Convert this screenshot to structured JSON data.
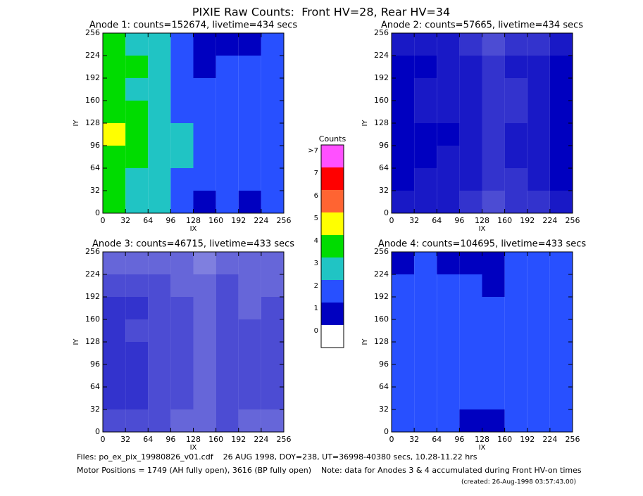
{
  "title": "PIXIE Raw Counts:  Front HV=28, Rear HV=34",
  "footer": {
    "files": "Files: po_ex_pix_19980826_v01.cdf    26 AUG 1998, DOY=238, UT=36998-40380 secs, 10.28-11.22 hrs",
    "motor": "Motor Positions = 1749 (AH fully open), 3616 (BP fully open)    Note: data for Anodes 3 & 4 accumulated during Front HV-on times",
    "created": "(created: 26-Aug-1998 03:57:43.00)"
  },
  "colorbar": {
    "title": "Counts",
    "labels": [
      "0",
      "1",
      "2",
      "3",
      "4",
      "5",
      "6",
      "7",
      ">7"
    ],
    "colors": [
      "#ffffff",
      "#0000c0",
      "#2850ff",
      "#20c4c4",
      "#00dc00",
      "#ffff00",
      "#ff6432",
      "#ff0000",
      "#ff50ff"
    ]
  },
  "chart_data": [
    {
      "type": "heatmap",
      "title": "Anode 1: counts=152674, livetime=434 secs",
      "xlabel": "IX",
      "ylabel": "IY",
      "xlim": [
        0,
        256
      ],
      "ylim": [
        0,
        256
      ],
      "xticks": [
        0,
        32,
        64,
        96,
        128,
        160,
        192,
        224,
        256
      ],
      "yticks": [
        0,
        32,
        64,
        96,
        128,
        160,
        192,
        224,
        256
      ],
      "values": [
        [
          3.8,
          3.2,
          2.8,
          2.2,
          1.4,
          1.5,
          1.4,
          1.6
        ],
        [
          4.2,
          3.4,
          3.0,
          2.4,
          1.5,
          1.5,
          1.5,
          1.7
        ],
        [
          4.4,
          3.6,
          3.1,
          2.5,
          1.6,
          1.6,
          1.6,
          1.8
        ],
        [
          4.6,
          3.6,
          3.2,
          2.5,
          1.5,
          1.6,
          1.6,
          1.8
        ],
        [
          4.4,
          3.5,
          3.1,
          2.4,
          1.5,
          1.5,
          1.5,
          1.7
        ],
        [
          4.2,
          3.4,
          3.0,
          2.4,
          1.5,
          1.5,
          1.5,
          1.7
        ],
        [
          4.3,
          3.5,
          3.1,
          2.4,
          1.4,
          1.5,
          1.5,
          1.6
        ],
        [
          4.0,
          3.2,
          2.8,
          2.2,
          1.3,
          1.4,
          1.4,
          1.5
        ]
      ]
    },
    {
      "type": "heatmap",
      "title": "Anode 2: counts=57665, livetime=434 secs",
      "xlabel": "IX",
      "ylabel": "IY",
      "xlim": [
        0,
        256
      ],
      "ylim": [
        0,
        256
      ],
      "xticks": [
        0,
        32,
        64,
        96,
        128,
        160,
        192,
        224,
        256
      ],
      "yticks": [
        0,
        32,
        64,
        96,
        128,
        160,
        192,
        224,
        256
      ],
      "values": [
        [
          0.9,
          0.9,
          0.9,
          0.8,
          0.7,
          0.8,
          0.8,
          0.9
        ],
        [
          1.0,
          0.9,
          0.9,
          0.9,
          0.8,
          0.8,
          0.9,
          1.0
        ],
        [
          1.0,
          1.0,
          0.9,
          0.9,
          0.8,
          0.9,
          0.9,
          1.0
        ],
        [
          1.0,
          1.0,
          1.0,
          0.9,
          0.8,
          0.9,
          0.9,
          1.0
        ],
        [
          1.0,
          0.9,
          0.9,
          0.9,
          0.8,
          0.8,
          0.9,
          1.0
        ],
        [
          1.0,
          0.9,
          0.9,
          0.9,
          0.8,
          0.8,
          0.9,
          1.0
        ],
        [
          1.0,
          1.0,
          0.9,
          0.9,
          0.8,
          0.9,
          0.9,
          1.0
        ],
        [
          0.9,
          0.9,
          0.9,
          0.8,
          0.7,
          0.8,
          0.8,
          0.9
        ]
      ]
    },
    {
      "type": "heatmap",
      "title": "Anode 3: counts=46715, livetime=433 secs",
      "xlabel": "IX",
      "ylabel": "IY",
      "xlim": [
        0,
        256
      ],
      "ylim": [
        0,
        256
      ],
      "xticks": [
        0,
        32,
        64,
        96,
        128,
        160,
        192,
        224,
        256
      ],
      "yticks": [
        0,
        32,
        64,
        96,
        128,
        160,
        192,
        224,
        256
      ],
      "values": [
        [
          0.7,
          0.7,
          0.7,
          0.6,
          0.6,
          0.7,
          0.6,
          0.6
        ],
        [
          0.8,
          0.8,
          0.7,
          0.7,
          0.6,
          0.7,
          0.7,
          0.7
        ],
        [
          0.8,
          0.8,
          0.7,
          0.7,
          0.6,
          0.7,
          0.7,
          0.7
        ],
        [
          0.8,
          0.8,
          0.7,
          0.7,
          0.6,
          0.7,
          0.7,
          0.7
        ],
        [
          0.8,
          0.7,
          0.7,
          0.7,
          0.6,
          0.7,
          0.7,
          0.7
        ],
        [
          0.8,
          0.8,
          0.7,
          0.7,
          0.6,
          0.7,
          0.6,
          0.7
        ],
        [
          0.7,
          0.7,
          0.7,
          0.6,
          0.6,
          0.7,
          0.6,
          0.6
        ],
        [
          0.6,
          0.6,
          0.6,
          0.6,
          0.5,
          0.6,
          0.6,
          0.6
        ]
      ]
    },
    {
      "type": "heatmap",
      "title": "Anode 4: counts=104695, livetime=433 secs",
      "xlabel": "IX",
      "ylabel": "IY",
      "xlim": [
        0,
        256
      ],
      "ylim": [
        0,
        256
      ],
      "xticks": [
        0,
        32,
        64,
        96,
        128,
        160,
        192,
        224,
        256
      ],
      "yticks": [
        0,
        32,
        64,
        96,
        128,
        160,
        192,
        224,
        256
      ],
      "values": [
        [
          1.5,
          1.6,
          1.5,
          1.4,
          1.4,
          1.6,
          1.7,
          1.8
        ],
        [
          1.6,
          1.7,
          1.6,
          1.5,
          1.5,
          1.7,
          1.8,
          1.9
        ],
        [
          1.7,
          1.7,
          1.6,
          1.6,
          1.5,
          1.7,
          1.8,
          1.9
        ],
        [
          1.7,
          1.8,
          1.6,
          1.6,
          1.5,
          1.7,
          1.8,
          1.9
        ],
        [
          1.6,
          1.7,
          1.6,
          1.5,
          1.5,
          1.7,
          1.8,
          1.9
        ],
        [
          1.6,
          1.7,
          1.6,
          1.5,
          1.5,
          1.6,
          1.7,
          1.8
        ],
        [
          1.6,
          1.7,
          1.5,
          1.5,
          1.4,
          1.6,
          1.7,
          1.8
        ],
        [
          1.4,
          1.5,
          1.4,
          1.4,
          1.3,
          1.5,
          1.6,
          1.7
        ]
      ]
    }
  ]
}
